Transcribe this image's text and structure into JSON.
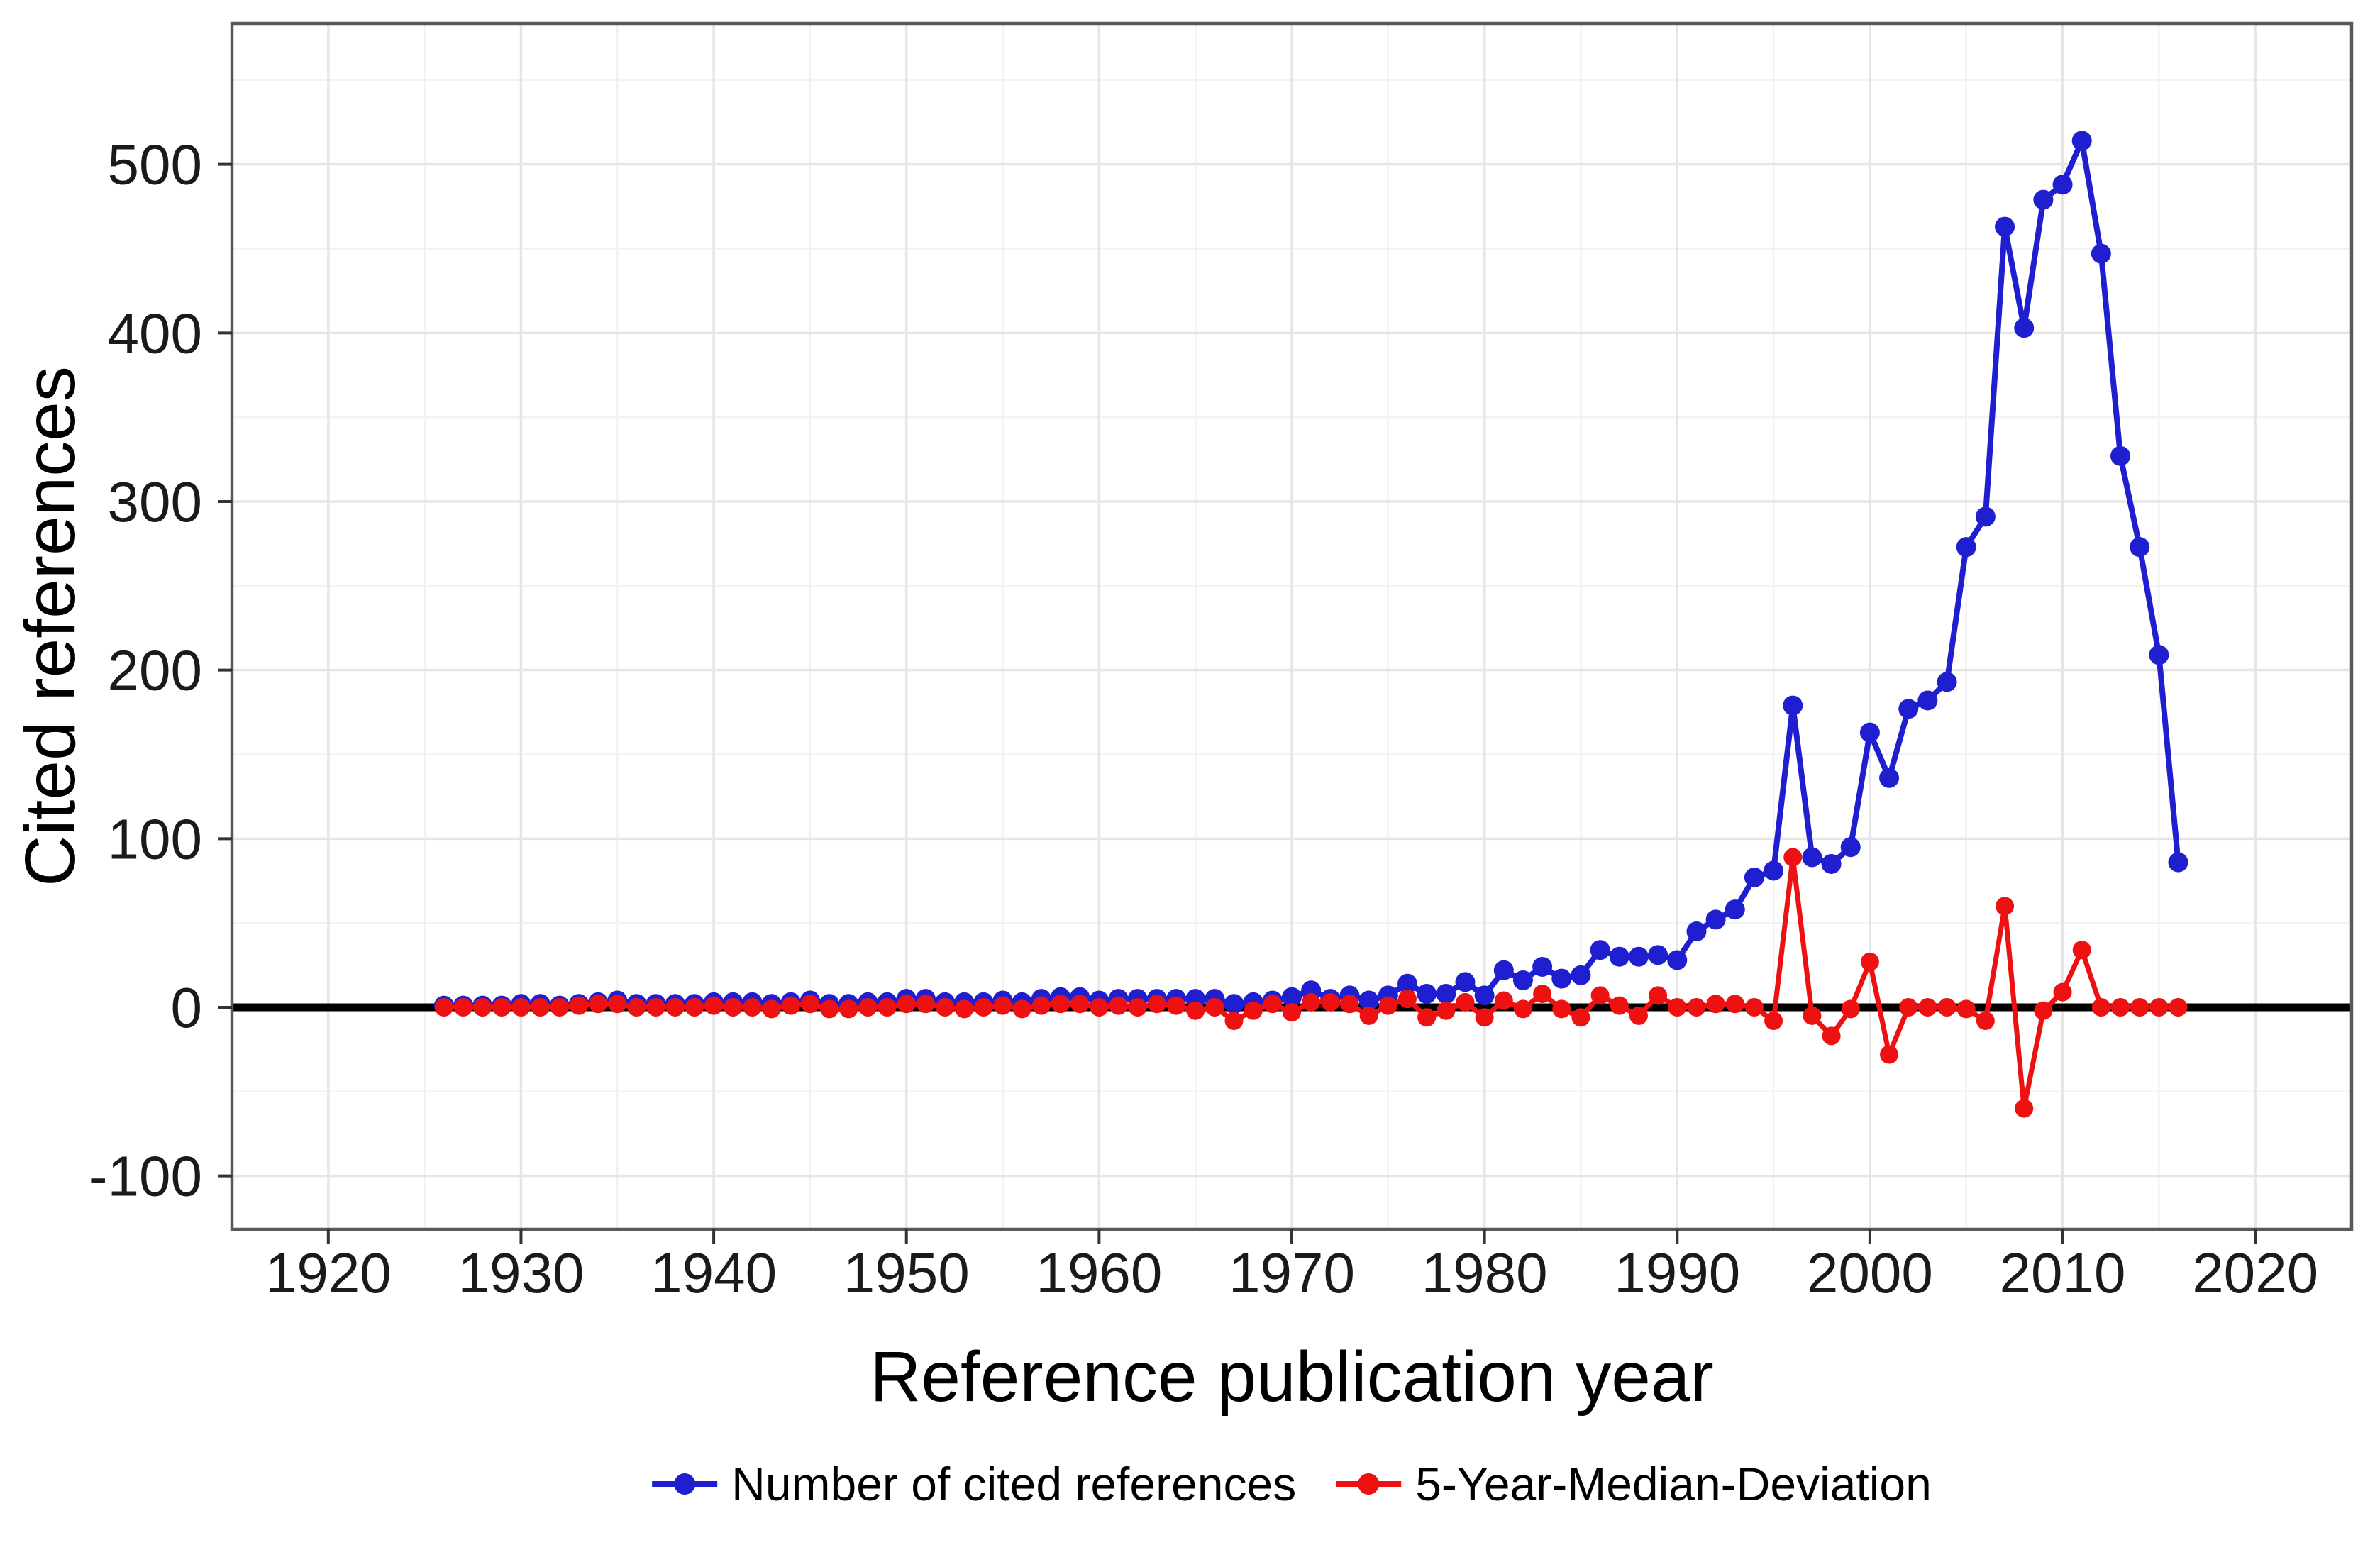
{
  "chart_data": {
    "type": "line",
    "title": "",
    "xlabel": "Reference publication year",
    "ylabel": "Cited references",
    "xlim": [
      1915,
      2025
    ],
    "ylim": [
      -131.7,
      583.6
    ],
    "x_ticks": [
      1920,
      1930,
      1940,
      1950,
      1960,
      1970,
      1980,
      1990,
      2000,
      2010,
      2020
    ],
    "x_minor_ticks": [
      1915,
      1925,
      1935,
      1945,
      1955,
      1965,
      1975,
      1985,
      1995,
      2005,
      2015,
      2025
    ],
    "y_ticks": [
      -100,
      0,
      100,
      200,
      300,
      400,
      500
    ],
    "y_minor_ticks": [
      -50,
      50,
      150,
      250,
      350,
      450,
      550
    ],
    "grid": "major+minor",
    "zero_line": true,
    "legend_position": "bottom",
    "x": [
      1926,
      1927,
      1928,
      1929,
      1930,
      1931,
      1932,
      1933,
      1934,
      1935,
      1936,
      1937,
      1938,
      1939,
      1940,
      1941,
      1942,
      1943,
      1944,
      1945,
      1946,
      1947,
      1948,
      1949,
      1950,
      1951,
      1952,
      1953,
      1954,
      1955,
      1956,
      1957,
      1958,
      1959,
      1960,
      1961,
      1962,
      1963,
      1964,
      1965,
      1966,
      1967,
      1968,
      1969,
      1970,
      1971,
      1972,
      1973,
      1974,
      1975,
      1976,
      1977,
      1978,
      1979,
      1980,
      1981,
      1982,
      1983,
      1984,
      1985,
      1986,
      1987,
      1988,
      1989,
      1990,
      1991,
      1992,
      1993,
      1994,
      1995,
      1996,
      1997,
      1998,
      1999,
      2000,
      2001,
      2002,
      2003,
      2004,
      2005,
      2006,
      2007,
      2008,
      2009,
      2010,
      2011,
      2012,
      2013,
      2014,
      2015,
      2016
    ],
    "series": [
      {
        "name": "Number of cited references",
        "color": "#1f1fcf",
        "values": [
          1,
          1,
          1,
          1,
          2,
          2,
          1,
          2,
          3,
          4,
          2,
          2,
          2,
          2,
          3,
          3,
          3,
          2,
          3,
          4,
          2,
          2,
          3,
          3,
          5,
          5,
          3,
          3,
          3,
          4,
          3,
          5,
          6,
          6,
          4,
          5,
          5,
          5,
          5,
          5,
          5,
          2,
          3,
          4,
          6,
          10,
          5,
          7,
          4,
          7,
          14,
          8,
          8,
          15,
          7,
          22,
          16,
          24,
          17,
          19,
          34,
          30,
          30,
          31,
          28,
          45,
          52,
          58,
          77,
          81,
          179,
          89,
          85,
          95,
          163,
          136,
          177,
          182,
          193,
          273,
          291,
          463,
          403,
          479,
          488,
          514,
          447,
          327,
          273,
          209,
          86
        ]
      },
      {
        "name": "5-Year-Median-Deviation",
        "color": "#ed1111",
        "values": [
          0,
          0,
          0,
          0,
          0,
          0,
          0,
          1,
          2,
          2,
          0,
          0,
          0,
          0,
          1,
          0,
          0,
          -1,
          1,
          2,
          -1,
          -1,
          0,
          0,
          2,
          2,
          0,
          -1,
          0,
          1,
          -1,
          1,
          2,
          2,
          0,
          1,
          0,
          2,
          1,
          -2,
          0,
          -8,
          -2,
          2,
          -3,
          3,
          3,
          2,
          -5,
          1,
          5,
          -6,
          -2,
          3,
          -6,
          4,
          -1,
          8,
          -1,
          -6,
          7,
          1,
          -5,
          7,
          0,
          0,
          2,
          2,
          0,
          -8,
          89,
          -5,
          -17,
          -1,
          27,
          -28,
          0,
          0,
          0,
          -1,
          -8,
          60,
          -60,
          -2,
          9,
          34,
          0,
          0,
          0,
          0,
          0
        ]
      }
    ]
  },
  "legend": {
    "items": [
      {
        "label": "Number of cited references",
        "color": "#1f1fcf"
      },
      {
        "label": "5-Year-Median-Deviation",
        "color": "#ed1111"
      }
    ]
  },
  "colors": {
    "background": "#ffffff",
    "panel_background": "#ffffff",
    "panel_border": "#595959",
    "grid_major": "#e6e6e6",
    "grid_minor": "#f2f2f2",
    "zero_line": "#000000",
    "tick_mark": "#333333",
    "series_blue": "#1f1fcf",
    "series_red": "#ed1111"
  }
}
